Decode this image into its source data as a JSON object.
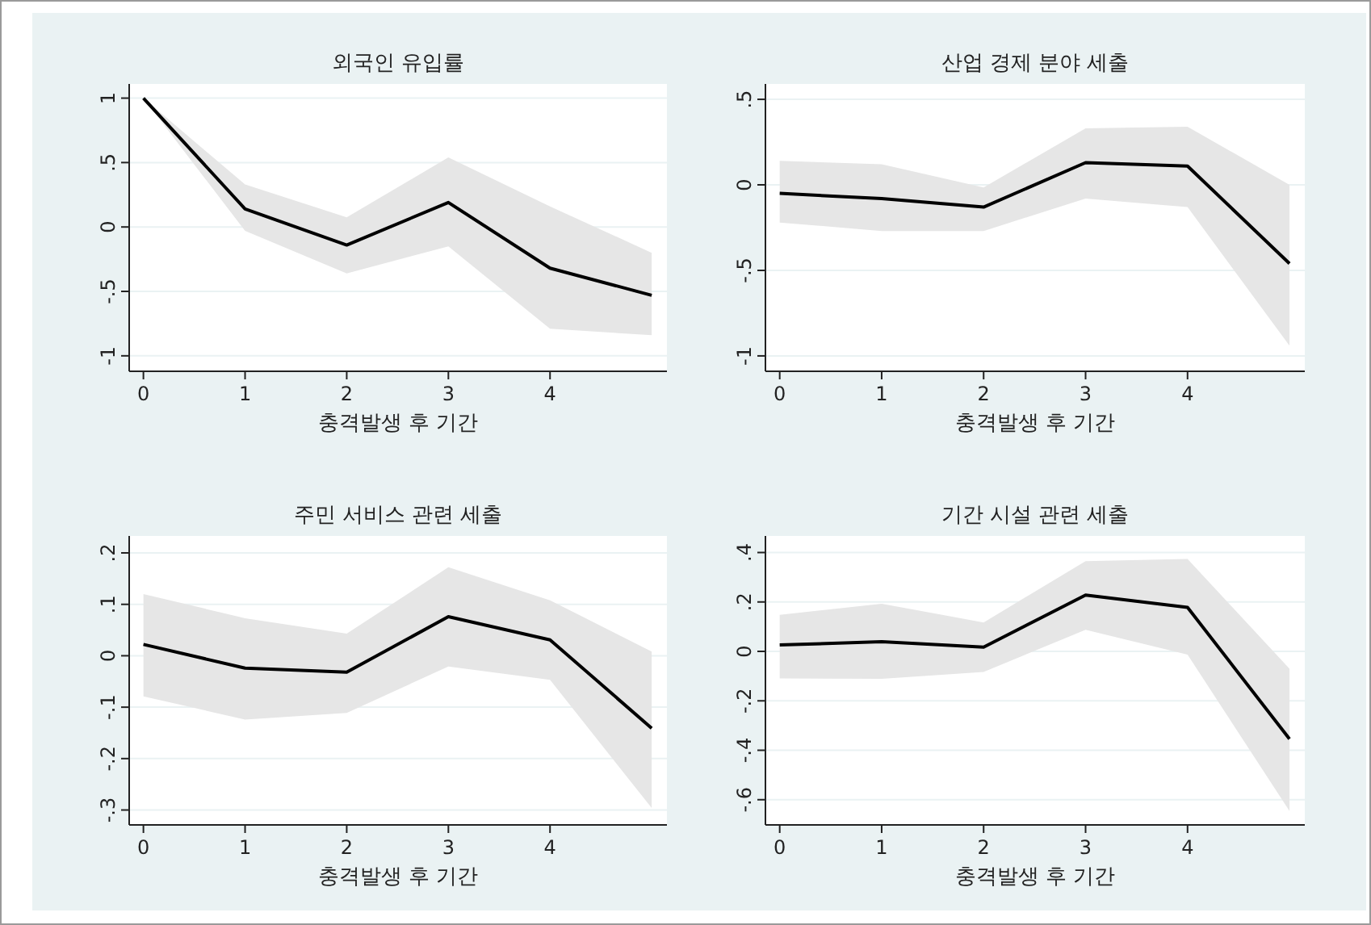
{
  "chart_data": [
    {
      "type": "line",
      "title": "외국인 유입률",
      "xlabel": "충격발생 후 기간",
      "x": [
        0,
        1,
        2,
        3,
        4,
        5
      ],
      "xlim": [
        -0.14,
        5.15
      ],
      "xticks": [
        0,
        1,
        2,
        3,
        4
      ],
      "ylim": [
        -1.12,
        1.11
      ],
      "yticks": [
        {
          "value": -1,
          "label": "-1"
        },
        {
          "value": -0.5,
          "label": "-.5"
        },
        {
          "value": 0,
          "label": "0"
        },
        {
          "value": 0.5,
          "label": ".5"
        },
        {
          "value": 1,
          "label": "1"
        }
      ],
      "grid": "y",
      "series": [
        {
          "color": "#000000",
          "values": [
            1.0,
            0.14,
            -0.14,
            0.19,
            -0.32,
            -0.53
          ],
          "lower": [
            1.0,
            -0.03,
            -0.36,
            -0.15,
            -0.79,
            -0.84
          ],
          "upper": [
            1.0,
            0.33,
            0.075,
            0.54,
            0.16,
            -0.2
          ]
        }
      ]
    },
    {
      "type": "line",
      "title": "산업 경제 분야 세출",
      "xlabel": "충격발생 후 기간",
      "x": [
        0,
        1,
        2,
        3,
        4,
        5
      ],
      "xlim": [
        -0.14,
        5.15
      ],
      "xticks": [
        0,
        1,
        2,
        3,
        4
      ],
      "ylim": [
        -1.09,
        0.59
      ],
      "yticks": [
        {
          "value": -1,
          "label": "-1"
        },
        {
          "value": -0.5,
          "label": "-.5"
        },
        {
          "value": 0,
          "label": "0"
        },
        {
          "value": 0.5,
          "label": ".5"
        }
      ],
      "grid": "y",
      "series": [
        {
          "color": "#000000",
          "values": [
            -0.05,
            -0.08,
            -0.13,
            0.13,
            0.11,
            -0.46
          ],
          "lower": [
            -0.22,
            -0.27,
            -0.27,
            -0.08,
            -0.13,
            -0.94
          ],
          "upper": [
            0.14,
            0.12,
            -0.015,
            0.33,
            0.34,
            0.0
          ]
        }
      ]
    },
    {
      "type": "line",
      "title": "주민 서비스 관련 세출",
      "xlabel": "충격발생 후 기간",
      "x": [
        0,
        1,
        2,
        3,
        4,
        5
      ],
      "xlim": [
        -0.14,
        5.15
      ],
      "xticks": [
        0,
        1,
        2,
        3,
        4
      ],
      "ylim": [
        -0.329,
        0.233
      ],
      "yticks": [
        {
          "value": -0.3,
          "label": "-.3"
        },
        {
          "value": -0.2,
          "label": "-.2"
        },
        {
          "value": -0.1,
          "label": "-.1"
        },
        {
          "value": 0,
          "label": "0"
        },
        {
          "value": 0.1,
          "label": ".1"
        },
        {
          "value": 0.2,
          "label": ".2"
        }
      ],
      "grid": "y",
      "series": [
        {
          "color": "#000000",
          "values": [
            0.022,
            -0.024,
            -0.032,
            0.076,
            0.031,
            -0.141
          ],
          "lower": [
            -0.079,
            -0.124,
            -0.111,
            -0.021,
            -0.047,
            -0.296
          ],
          "upper": [
            0.12,
            0.073,
            0.043,
            0.172,
            0.108,
            0.008
          ]
        }
      ]
    },
    {
      "type": "line",
      "title": "기간 시설 관련 세출",
      "xlabel": "충격발생 후 기간",
      "x": [
        0,
        1,
        2,
        3,
        4,
        5
      ],
      "xlim": [
        -0.14,
        5.15
      ],
      "xticks": [
        0,
        1,
        2,
        3,
        4
      ],
      "ylim": [
        -0.702,
        0.467
      ],
      "yticks": [
        {
          "value": -0.6,
          "label": "-.6"
        },
        {
          "value": -0.4,
          "label": "-.4"
        },
        {
          "value": -0.2,
          "label": "-.2"
        },
        {
          "value": 0,
          "label": "0"
        },
        {
          "value": 0.2,
          "label": ".2"
        },
        {
          "value": 0.4,
          "label": ".4"
        }
      ],
      "grid": "y",
      "series": [
        {
          "color": "#000000",
          "values": [
            0.026,
            0.039,
            0.017,
            0.228,
            0.178,
            -0.354
          ],
          "lower": [
            -0.109,
            -0.111,
            -0.083,
            0.087,
            -0.013,
            -0.646
          ],
          "upper": [
            0.148,
            0.193,
            0.117,
            0.365,
            0.374,
            -0.07
          ]
        }
      ]
    }
  ]
}
